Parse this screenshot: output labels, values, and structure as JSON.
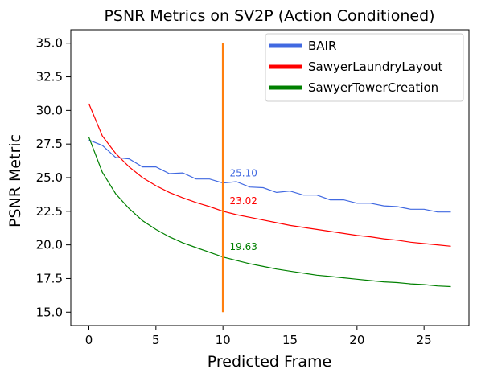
{
  "chart_data": {
    "type": "line",
    "title": "PSNR Metrics on SV2P (Action Conditioned)",
    "xlabel": "Predicted Frame",
    "ylabel": "PSNR Metric",
    "xlim": [
      -1.35,
      28.35
    ],
    "ylim": [
      14.0,
      36.0
    ],
    "xticks": [
      0,
      5,
      10,
      15,
      20,
      25
    ],
    "yticks": [
      15.0,
      17.5,
      20.0,
      22.5,
      25.0,
      27.5,
      30.0,
      32.5,
      35.0
    ],
    "ytick_labels": [
      "15.0",
      "17.5",
      "20.0",
      "22.5",
      "25.0",
      "27.5",
      "30.0",
      "32.5",
      "35.0"
    ],
    "grid": false,
    "legend_position": "top-right",
    "series": [
      {
        "name": "BAIR",
        "color": "#4169e1",
        "x": [
          0,
          1,
          2,
          3,
          4,
          5,
          6,
          7,
          8,
          9,
          10,
          11,
          12,
          13,
          14,
          15,
          16,
          17,
          18,
          19,
          20,
          21,
          22,
          23,
          24,
          25,
          26,
          27
        ],
        "y": [
          27.8,
          27.4,
          26.5,
          26.4,
          25.8,
          25.8,
          25.3,
          25.35,
          24.9,
          24.9,
          24.6,
          24.7,
          24.3,
          24.25,
          23.9,
          24.0,
          23.7,
          23.7,
          23.35,
          23.35,
          23.1,
          23.1,
          22.9,
          22.85,
          22.65,
          22.65,
          22.45,
          22.45
        ]
      },
      {
        "name": "SawyerLaundryLayout",
        "color": "#ff0000",
        "x": [
          0,
          1,
          2,
          3,
          4,
          5,
          6,
          7,
          8,
          9,
          10,
          11,
          12,
          13,
          14,
          15,
          16,
          17,
          18,
          19,
          20,
          21,
          22,
          23,
          24,
          25,
          26,
          27
        ],
        "y": [
          30.5,
          28.1,
          26.8,
          25.8,
          25.0,
          24.4,
          23.9,
          23.5,
          23.15,
          22.85,
          22.5,
          22.25,
          22.05,
          21.85,
          21.65,
          21.45,
          21.3,
          21.15,
          21.0,
          20.85,
          20.7,
          20.6,
          20.45,
          20.35,
          20.2,
          20.1,
          20.0,
          19.9
        ]
      },
      {
        "name": "SawyerTowerCreation",
        "color": "#008000",
        "x": [
          0,
          1,
          2,
          3,
          4,
          5,
          6,
          7,
          8,
          9,
          10,
          11,
          12,
          13,
          14,
          15,
          16,
          17,
          18,
          19,
          20,
          21,
          22,
          23,
          24,
          25,
          26,
          27
        ],
        "y": [
          28.0,
          25.4,
          23.8,
          22.7,
          21.8,
          21.15,
          20.6,
          20.15,
          19.8,
          19.45,
          19.1,
          18.85,
          18.6,
          18.4,
          18.2,
          18.05,
          17.9,
          17.75,
          17.65,
          17.55,
          17.45,
          17.35,
          17.25,
          17.2,
          17.1,
          17.05,
          16.95,
          16.9
        ]
      }
    ],
    "vline": {
      "x": 10,
      "ymin": 15.0,
      "ymax": 35.0,
      "color": "#ff7f0e"
    },
    "annotations": [
      {
        "text": "25.10",
        "x": 10.5,
        "y": 25.1,
        "color": "#4169e1"
      },
      {
        "text": "23.02",
        "x": 10.5,
        "y": 23.02,
        "color": "#ff0000"
      },
      {
        "text": "19.63",
        "x": 10.5,
        "y": 19.63,
        "color": "#008000"
      }
    ]
  }
}
